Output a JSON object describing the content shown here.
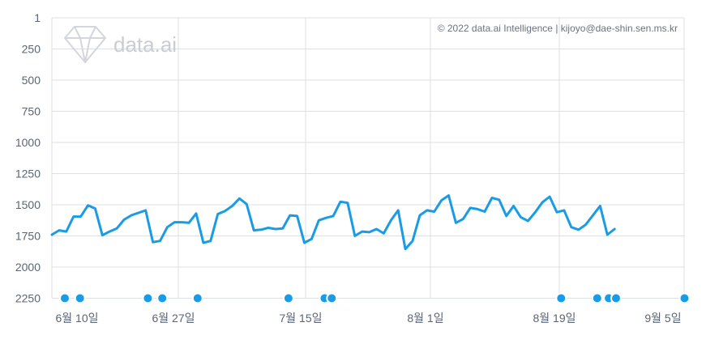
{
  "chart_data": {
    "type": "line",
    "title": "",
    "xlabel": "",
    "ylabel": "",
    "y_axis": {
      "inverted": true,
      "ticks": [
        1,
        250,
        500,
        750,
        1000,
        1250,
        1500,
        1750,
        2000,
        2250
      ],
      "ylim": [
        1,
        2250
      ]
    },
    "x_axis": {
      "ticks": [
        "6월 10일",
        "6월 27일",
        "7월 15일",
        "8월 1일",
        "8월 19일",
        "9월 5일"
      ]
    },
    "grid": true,
    "legend": "none",
    "series": [
      {
        "color": "#1a9be6",
        "points": [
          [
            0,
            1740
          ],
          [
            1,
            1705
          ],
          [
            2,
            1715
          ],
          [
            3,
            1595
          ],
          [
            4,
            1595
          ],
          [
            5,
            1505
          ],
          [
            6,
            1530
          ],
          [
            7,
            1745
          ],
          [
            8,
            1715
          ],
          [
            9,
            1690
          ],
          [
            10,
            1620
          ],
          [
            11,
            1585
          ],
          [
            12,
            1565
          ],
          [
            13,
            1545
          ],
          [
            14,
            1800
          ],
          [
            15,
            1790
          ],
          [
            16,
            1680
          ],
          [
            17,
            1640
          ],
          [
            18,
            1640
          ],
          [
            19,
            1645
          ],
          [
            20,
            1570
          ],
          [
            21,
            1805
          ],
          [
            22,
            1790
          ],
          [
            23,
            1575
          ],
          [
            24,
            1550
          ],
          [
            25,
            1510
          ],
          [
            26,
            1450
          ],
          [
            27,
            1495
          ],
          [
            28,
            1705
          ],
          [
            29,
            1700
          ],
          [
            30,
            1685
          ],
          [
            31,
            1695
          ],
          [
            32,
            1690
          ],
          [
            33,
            1585
          ],
          [
            34,
            1590
          ],
          [
            35,
            1805
          ],
          [
            36,
            1775
          ],
          [
            37,
            1625
          ],
          [
            38,
            1605
          ],
          [
            39,
            1590
          ],
          [
            40,
            1475
          ],
          [
            41,
            1485
          ],
          [
            42,
            1750
          ],
          [
            43,
            1715
          ],
          [
            44,
            1720
          ],
          [
            45,
            1695
          ],
          [
            46,
            1730
          ],
          [
            47,
            1625
          ],
          [
            48,
            1545
          ],
          [
            49,
            1855
          ],
          [
            50,
            1790
          ],
          [
            51,
            1585
          ],
          [
            52,
            1545
          ],
          [
            53,
            1555
          ],
          [
            54,
            1465
          ],
          [
            55,
            1425
          ],
          [
            56,
            1645
          ],
          [
            57,
            1615
          ],
          [
            58,
            1525
          ],
          [
            59,
            1535
          ],
          [
            60,
            1555
          ],
          [
            61,
            1445
          ],
          [
            62,
            1460
          ],
          [
            63,
            1590
          ],
          [
            64,
            1510
          ],
          [
            65,
            1600
          ],
          [
            66,
            1630
          ],
          [
            67,
            1560
          ],
          [
            68,
            1480
          ],
          [
            69,
            1435
          ],
          [
            70,
            1560
          ],
          [
            71,
            1545
          ],
          [
            72,
            1680
          ],
          [
            73,
            1700
          ],
          [
            74,
            1660
          ],
          [
            75,
            1585
          ],
          [
            76,
            1510
          ],
          [
            77,
            1740
          ],
          [
            78,
            1695
          ]
        ]
      }
    ],
    "markers": {
      "color": "#1a9be6",
      "positions": [
        1.8,
        3.9,
        13.3,
        15.3,
        20.2,
        32.8,
        37.8,
        38.8,
        70.6,
        75.6,
        77.2,
        78.2,
        87.7
      ]
    }
  },
  "copyright": "© 2022 data.ai Intelligence | kijoyo@dae-shin.sen.ms.kr",
  "logo": {
    "text": "data.ai",
    "icon": "diamond-icon"
  }
}
